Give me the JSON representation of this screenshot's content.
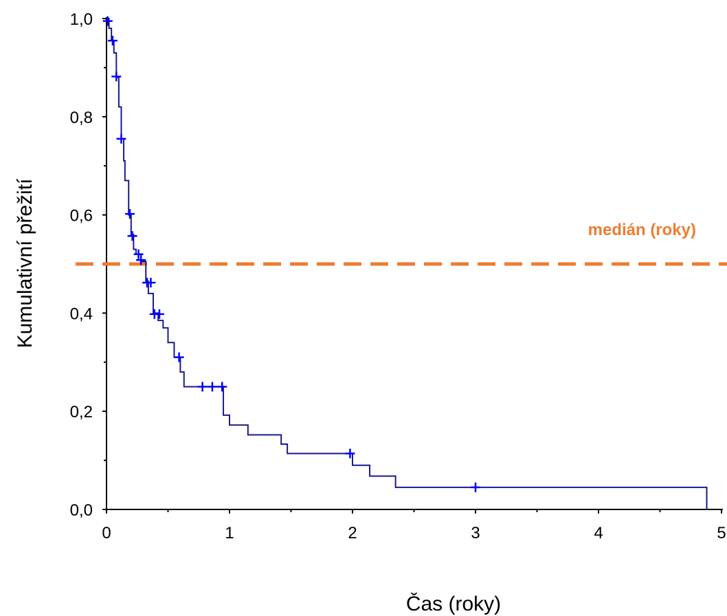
{
  "chart_data": {
    "type": "line",
    "title": "",
    "xlabel": "Čas (roky)",
    "ylabel": "Kumulativní přežití",
    "xlim": [
      0,
      5
    ],
    "ylim": [
      0,
      1
    ],
    "x_ticks": [
      {
        "value": 0,
        "label": "0"
      },
      {
        "value": 1,
        "label": "1"
      },
      {
        "value": 2,
        "label": "2"
      },
      {
        "value": 3,
        "label": "3"
      },
      {
        "value": 4,
        "label": "4"
      },
      {
        "value": 5,
        "label": "5"
      }
    ],
    "y_ticks": [
      {
        "value": 0,
        "label": "0,0"
      },
      {
        "value": 0.2,
        "label": "0,2"
      },
      {
        "value": 0.4,
        "label": "0,4"
      },
      {
        "value": 0.6,
        "label": "0,6"
      },
      {
        "value": 0.8,
        "label": "0,8"
      },
      {
        "value": 1,
        "label": "1,0"
      }
    ],
    "grid": false,
    "series": [
      {
        "kind": "step",
        "color": "#1a1a8c",
        "x": [
          0,
          0.02,
          0.04,
          0.06,
          0.08,
          0.1,
          0.12,
          0.14,
          0.15,
          0.18,
          0.2,
          0.22,
          0.24,
          0.28,
          0.32,
          0.34,
          0.38,
          0.42,
          0.46,
          0.5,
          0.55,
          0.6,
          0.63,
          0.95,
          1.0,
          1.15,
          1.42,
          1.47,
          2.0,
          2.14,
          2.35,
          4.88
        ],
        "y": [
          1.0,
          0.98,
          0.955,
          0.93,
          0.88,
          0.82,
          0.755,
          0.71,
          0.67,
          0.6,
          0.56,
          0.53,
          0.52,
          0.505,
          0.465,
          0.44,
          0.4,
          0.385,
          0.37,
          0.34,
          0.31,
          0.28,
          0.25,
          0.192,
          0.172,
          0.152,
          0.133,
          0.114,
          0.09,
          0.068,
          0.045,
          0.0
        ]
      }
    ],
    "censor_marks": {
      "color": "#0000ff",
      "points": [
        [
          0.01,
          0.995
        ],
        [
          0.05,
          0.955
        ],
        [
          0.08,
          0.882
        ],
        [
          0.12,
          0.755
        ],
        [
          0.19,
          0.602
        ],
        [
          0.21,
          0.557
        ],
        [
          0.26,
          0.52
        ],
        [
          0.28,
          0.508
        ],
        [
          0.33,
          0.462
        ],
        [
          0.36,
          0.462
        ],
        [
          0.39,
          0.398
        ],
        [
          0.43,
          0.398
        ],
        [
          0.59,
          0.31
        ],
        [
          0.78,
          0.25
        ],
        [
          0.86,
          0.25
        ],
        [
          0.94,
          0.25
        ],
        [
          1.98,
          0.114
        ],
        [
          3.0,
          0.045
        ]
      ]
    },
    "reference_line": {
      "y": 0.5,
      "color": "#ed7d31",
      "label": "medián (roky)",
      "style": "dashed"
    }
  }
}
